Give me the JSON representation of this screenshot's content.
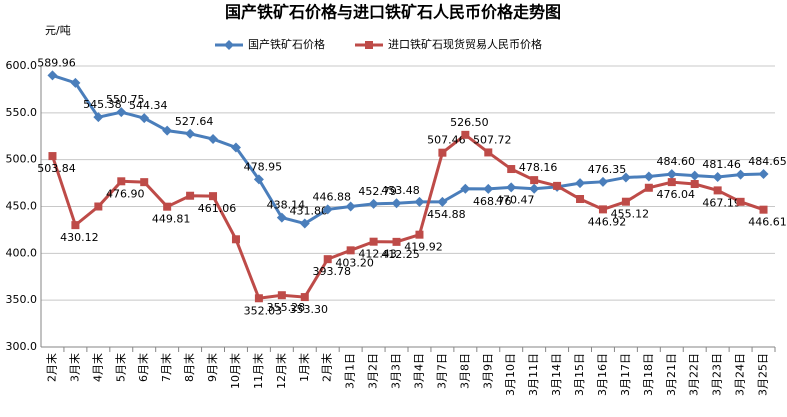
{
  "chart_data": {
    "type": "line",
    "title": "国产铁矿石价格与进口铁矿石人民币价格走势图",
    "y_label": "元/吨",
    "categories": [
      "2月末",
      "3月末",
      "4月末",
      "5月末",
      "6月末",
      "7月末",
      "8月末",
      "9月末",
      "10月末",
      "11月末",
      "12月末",
      "1月末",
      "2月末",
      "3月1日",
      "3月2日",
      "3月3日",
      "3月4日",
      "3月7日",
      "3月8日",
      "3月9日",
      "3月10日",
      "3月11日",
      "3月14日",
      "3月15日",
      "3月16日",
      "3月17日",
      "3月18日",
      "3月21日",
      "3月22日",
      "3月23日",
      "3月24日",
      "3月25日"
    ],
    "series": [
      {
        "name": "国产铁矿石价格",
        "color": "#4a7ebb",
        "marker": "diamond",
        "values": [
          589.96,
          582,
          545.38,
          550.75,
          544.34,
          531,
          527.64,
          522,
          513,
          478.95,
          438.14,
          431.8,
          446.88,
          450,
          452.79,
          453.48,
          455,
          454.88,
          469,
          468.76,
          470.47,
          469,
          471,
          475,
          476.35,
          481,
          482,
          484.6,
          483,
          481.46,
          484,
          484.65
        ],
        "value_labels": [
          "589.96",
          null,
          "545.38",
          "550.75",
          "544.34",
          null,
          "527.64",
          null,
          null,
          "478.95",
          "438.14",
          "431.80",
          "446.88",
          null,
          "452.79",
          "453.48",
          null,
          "454.88",
          null,
          "468.76",
          "470.47",
          null,
          null,
          null,
          "476.35",
          null,
          null,
          "484.60",
          null,
          "481.46",
          null,
          "484.65"
        ]
      },
      {
        "name": "进口铁矿石现货贸易人民币价格",
        "color": "#be4b48",
        "marker": "square",
        "values": [
          503.84,
          430.12,
          450,
          476.9,
          476,
          449.81,
          461.5,
          461.06,
          415,
          352.03,
          355.28,
          353.3,
          393.78,
          403.2,
          412.43,
          412.25,
          419.92,
          507.46,
          526.5,
          507.72,
          490,
          478.16,
          472,
          458,
          446.92,
          455.12,
          470,
          476.04,
          474,
          467.19,
          455,
          446.61
        ],
        "value_labels": [
          "503.84",
          "430.12",
          null,
          "476.90",
          null,
          "449.81",
          null,
          "461.06",
          null,
          "352.03",
          "355.28",
          "353.30",
          "393.78",
          "403.20",
          "412.43",
          "412.25",
          "419.92",
          "507.46",
          "526.50",
          "507.72",
          null,
          "478.16",
          null,
          null,
          "446.92",
          "455.12",
          null,
          "476.04",
          null,
          "467.19",
          null,
          "446.61"
        ]
      }
    ],
    "ylim": [
      300,
      600
    ],
    "yticks": [
      {
        "value": 300,
        "label": "300.0"
      },
      {
        "value": 350,
        "label": "350.0"
      },
      {
        "value": 400,
        "label": "400.0"
      },
      {
        "value": 450,
        "label": "450.0"
      },
      {
        "value": 500,
        "label": "500.0"
      },
      {
        "value": 550,
        "label": "550.0"
      },
      {
        "value": 600,
        "label": "600.0"
      }
    ],
    "grid": true,
    "legend": "top"
  }
}
